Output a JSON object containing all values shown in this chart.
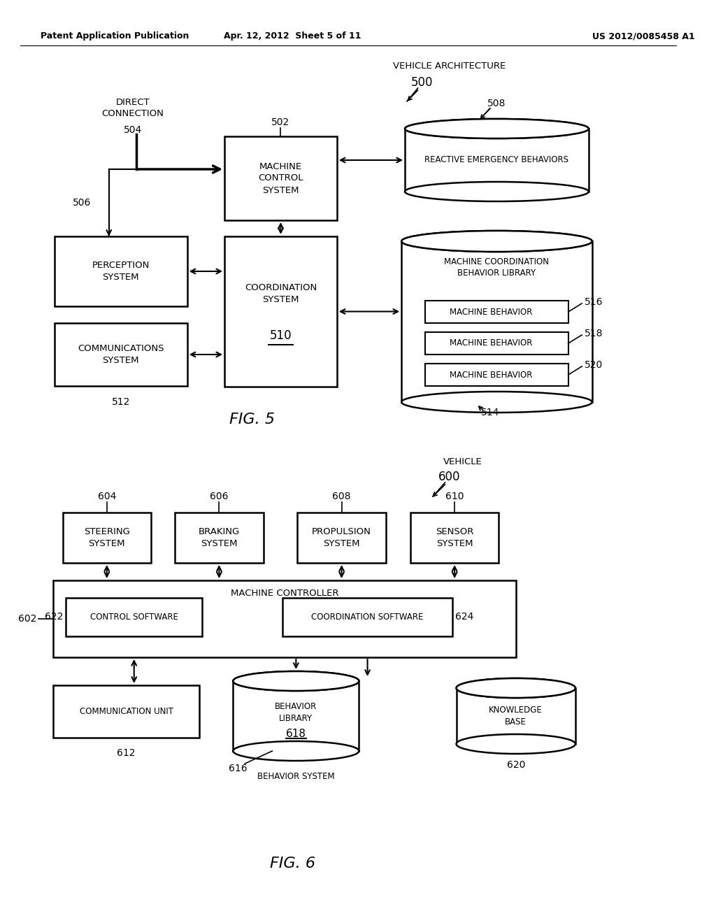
{
  "bg_color": "#ffffff",
  "header_left": "Patent Application Publication",
  "header_mid": "Apr. 12, 2012  Sheet 5 of 11",
  "header_right": "US 2012/0085458 A1",
  "fig5_label": "FIG. 5",
  "fig6_label": "FIG. 6"
}
